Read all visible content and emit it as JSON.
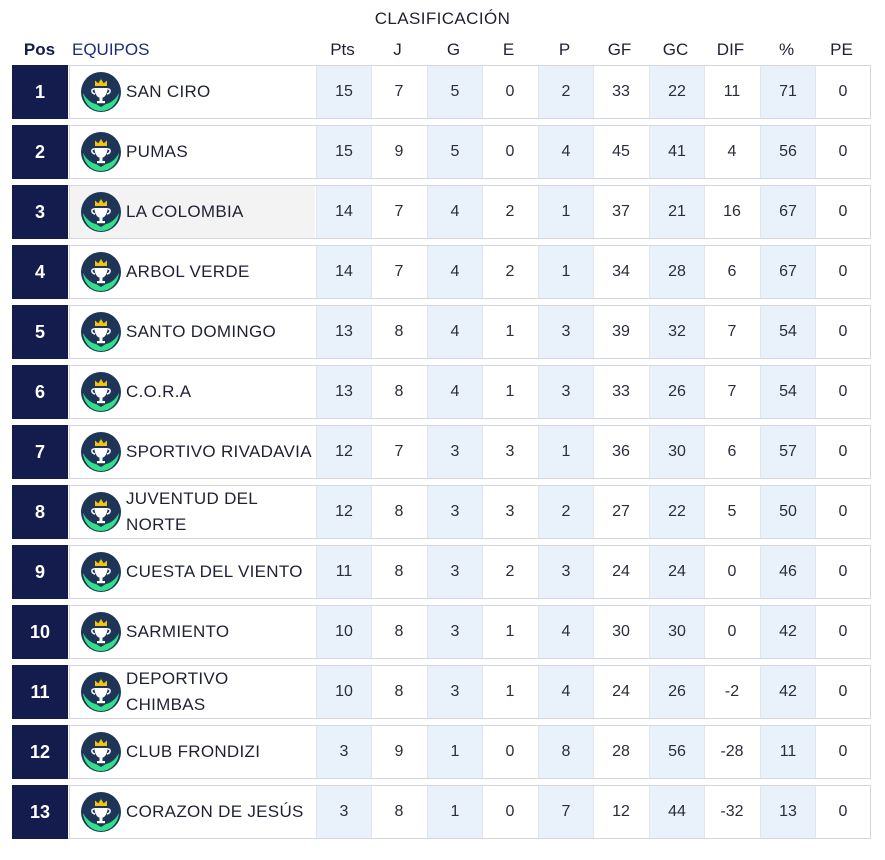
{
  "title": "CLASIFICACIÓN",
  "headers": {
    "pos": "Pos",
    "team": "EQUIPOS",
    "stats": [
      "Pts",
      "J",
      "G",
      "E",
      "P",
      "GF",
      "GC",
      "DIF",
      "%",
      "PE"
    ]
  },
  "colors": {
    "position_bg": "#141b4d",
    "shaded_column": "#e9f2fb",
    "logo_navy": "#1e3558",
    "logo_green": "#33e08a",
    "logo_gold": "#f1c40f"
  },
  "logo_icon": "trophy-hands-icon",
  "rows": [
    {
      "pos": "1",
      "team": "SAN CIRO",
      "stats": [
        "15",
        "7",
        "5",
        "0",
        "2",
        "33",
        "22",
        "11",
        "71",
        "0"
      ]
    },
    {
      "pos": "2",
      "team": "PUMAS",
      "stats": [
        "15",
        "9",
        "5",
        "0",
        "4",
        "45",
        "41",
        "4",
        "56",
        "0"
      ]
    },
    {
      "pos": "3",
      "team": "LA COLOMBIA",
      "stats": [
        "14",
        "7",
        "4",
        "2",
        "1",
        "37",
        "21",
        "16",
        "67",
        "0"
      ],
      "highlight": true
    },
    {
      "pos": "4",
      "team": "ARBOL VERDE",
      "stats": [
        "14",
        "7",
        "4",
        "2",
        "1",
        "34",
        "28",
        "6",
        "67",
        "0"
      ]
    },
    {
      "pos": "5",
      "team": "SANTO DOMINGO",
      "stats": [
        "13",
        "8",
        "4",
        "1",
        "3",
        "39",
        "32",
        "7",
        "54",
        "0"
      ]
    },
    {
      "pos": "6",
      "team": "C.O.R.A",
      "stats": [
        "13",
        "8",
        "4",
        "1",
        "3",
        "33",
        "26",
        "7",
        "54",
        "0"
      ]
    },
    {
      "pos": "7",
      "team": "SPORTIVO RIVADAVIA",
      "stats": [
        "12",
        "7",
        "3",
        "3",
        "1",
        "36",
        "30",
        "6",
        "57",
        "0"
      ]
    },
    {
      "pos": "8",
      "team": "JUVENTUD DEL NORTE",
      "stats": [
        "12",
        "8",
        "3",
        "3",
        "2",
        "27",
        "22",
        "5",
        "50",
        "0"
      ]
    },
    {
      "pos": "9",
      "team": "CUESTA DEL VIENTO",
      "stats": [
        "11",
        "8",
        "3",
        "2",
        "3",
        "24",
        "24",
        "0",
        "46",
        "0"
      ]
    },
    {
      "pos": "10",
      "team": "SARMIENTO",
      "stats": [
        "10",
        "8",
        "3",
        "1",
        "4",
        "30",
        "30",
        "0",
        "42",
        "0"
      ]
    },
    {
      "pos": "11",
      "team": "DEPORTIVO CHIMBAS",
      "stats": [
        "10",
        "8",
        "3",
        "1",
        "4",
        "24",
        "26",
        "-2",
        "42",
        "0"
      ]
    },
    {
      "pos": "12",
      "team": "CLUB FRONDIZI",
      "stats": [
        "3",
        "9",
        "1",
        "0",
        "8",
        "28",
        "56",
        "-28",
        "11",
        "0"
      ]
    },
    {
      "pos": "13",
      "team": "CORAZON DE JESÚS",
      "stats": [
        "3",
        "8",
        "1",
        "0",
        "7",
        "12",
        "44",
        "-32",
        "13",
        "0"
      ]
    }
  ]
}
